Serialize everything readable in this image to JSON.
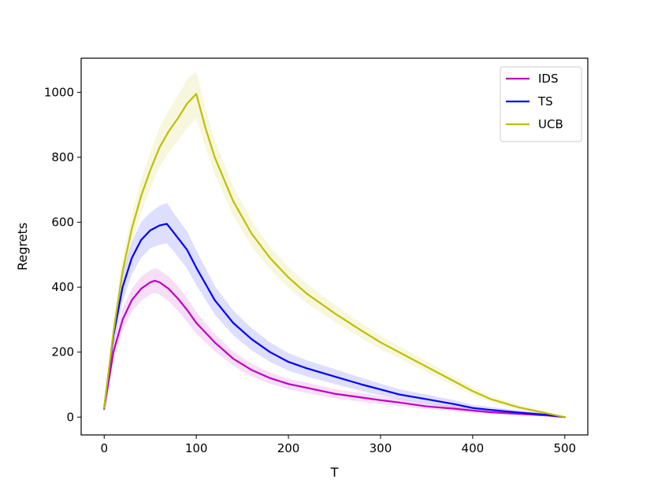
{
  "chart_data": {
    "type": "line",
    "title": "",
    "xlabel": "T",
    "ylabel": "Regrets",
    "xlim": [
      -25,
      525
    ],
    "ylim": [
      -55,
      1105
    ],
    "xticks": [
      0,
      100,
      200,
      300,
      400,
      500
    ],
    "yticks": [
      0,
      200,
      400,
      600,
      800,
      1000
    ],
    "grid": false,
    "legend_position": "top-right",
    "series": [
      {
        "name": "IDS",
        "color": "#bf00bf",
        "x": [
          0,
          10,
          20,
          30,
          40,
          50,
          55,
          60,
          70,
          80,
          90,
          100,
          120,
          140,
          160,
          180,
          200,
          220,
          250,
          280,
          300,
          320,
          350,
          380,
          400,
          420,
          450,
          480,
          500
        ],
        "values": [
          25,
          200,
          300,
          360,
          395,
          415,
          420,
          415,
          395,
          365,
          330,
          290,
          230,
          180,
          145,
          120,
          102,
          90,
          72,
          60,
          52,
          45,
          33,
          26,
          20,
          15,
          10,
          5,
          0
        ],
        "lower": [
          20,
          170,
          265,
          325,
          358,
          378,
          382,
          377,
          357,
          327,
          293,
          257,
          203,
          158,
          126,
          103,
          86,
          74,
          58,
          47,
          40,
          34,
          24,
          18,
          13,
          9,
          5,
          2,
          0
        ],
        "upper": [
          30,
          230,
          335,
          395,
          432,
          452,
          458,
          453,
          433,
          403,
          367,
          323,
          257,
          202,
          164,
          137,
          118,
          106,
          86,
          73,
          64,
          56,
          42,
          34,
          27,
          21,
          15,
          8,
          0
        ]
      },
      {
        "name": "TS",
        "color": "#0000ff",
        "x": [
          0,
          10,
          20,
          30,
          40,
          50,
          60,
          68,
          75,
          90,
          100,
          120,
          140,
          160,
          180,
          200,
          220,
          250,
          280,
          300,
          320,
          350,
          380,
          400,
          420,
          450,
          480,
          500
        ],
        "values": [
          28,
          250,
          400,
          490,
          545,
          575,
          590,
          595,
          570,
          515,
          460,
          360,
          290,
          240,
          200,
          170,
          150,
          125,
          100,
          85,
          70,
          55,
          40,
          28,
          22,
          14,
          7,
          0
        ],
        "lower": [
          22,
          215,
          355,
          440,
          490,
          520,
          530,
          535,
          512,
          458,
          406,
          316,
          252,
          206,
          170,
          143,
          125,
          102,
          80,
          67,
          54,
          41,
          28,
          18,
          13,
          7,
          3,
          0
        ],
        "upper": [
          34,
          285,
          445,
          540,
          600,
          630,
          650,
          660,
          630,
          572,
          514,
          404,
          328,
          274,
          230,
          197,
          175,
          148,
          120,
          103,
          86,
          69,
          52,
          38,
          31,
          21,
          11,
          0
        ]
      },
      {
        "name": "UCB",
        "color": "#bfbf00",
        "x": [
          0,
          10,
          20,
          30,
          40,
          50,
          60,
          70,
          80,
          90,
          100,
          110,
          120,
          140,
          160,
          180,
          200,
          220,
          250,
          280,
          300,
          320,
          350,
          380,
          400,
          420,
          450,
          480,
          500
        ],
        "values": [
          28,
          260,
          450,
          580,
          680,
          760,
          830,
          880,
          920,
          965,
          995,
          890,
          800,
          665,
          565,
          490,
          430,
          380,
          320,
          265,
          230,
          200,
          155,
          110,
          80,
          55,
          30,
          12,
          0
        ],
        "lower": [
          22,
          230,
          410,
          535,
          630,
          705,
          770,
          815,
          850,
          890,
          920,
          830,
          748,
          620,
          525,
          455,
          398,
          350,
          294,
          242,
          209,
          181,
          138,
          96,
          68,
          45,
          22,
          7,
          0
        ],
        "upper": [
          34,
          290,
          490,
          625,
          730,
          815,
          890,
          945,
          990,
          1040,
          1065,
          950,
          852,
          710,
          605,
          525,
          462,
          410,
          346,
          288,
          251,
          219,
          172,
          124,
          92,
          65,
          38,
          17,
          0
        ]
      }
    ]
  }
}
